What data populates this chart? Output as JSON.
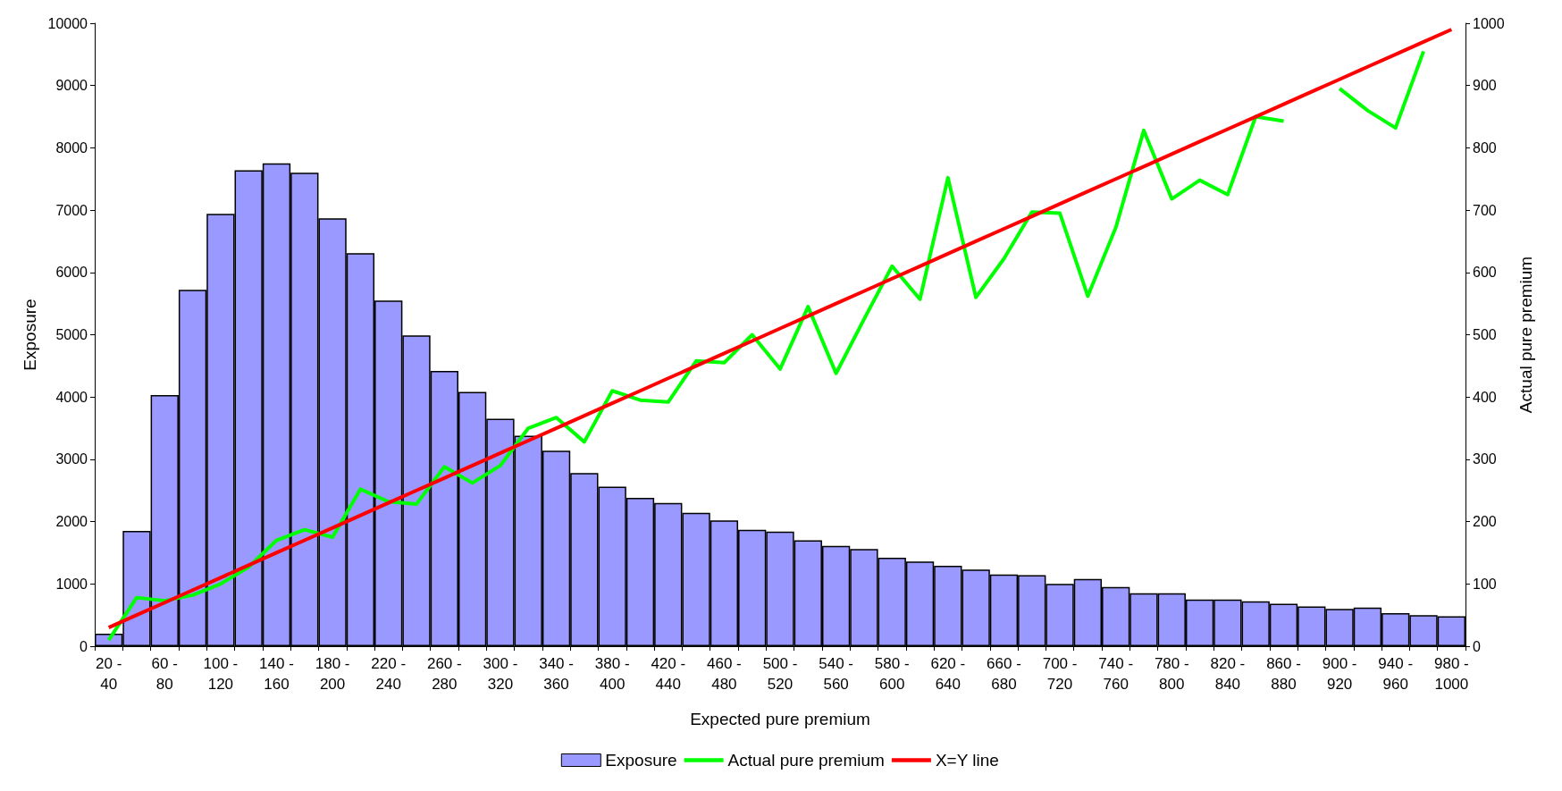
{
  "chart_data": {
    "type": "bar",
    "xlabel": "Expected pure premium",
    "ylabel": "Exposure",
    "y2label": "Actual pure premium",
    "categories": [
      "20 - 40",
      null,
      "60 - 80",
      null,
      "100 - 120",
      null,
      "140 - 160",
      null,
      "180 - 200",
      null,
      "220 - 240",
      null,
      "260 - 280",
      null,
      "300 - 320",
      null,
      "340 - 360",
      null,
      "380 - 400",
      null,
      "420 - 440",
      null,
      "460 - 480",
      null,
      "500 - 520",
      null,
      "540 - 560",
      null,
      "580 - 600",
      null,
      "620 - 640",
      null,
      "660 - 680",
      null,
      "700 - 720",
      null,
      "740 - 760",
      null,
      "780 - 800",
      null,
      "820 - 840",
      null,
      "860 - 880",
      null,
      "900 - 920",
      null,
      "940 - 960",
      null,
      "980 - 1000"
    ],
    "series": [
      {
        "name": "Exposure",
        "color": "#9999ff",
        "values": [
          200,
          1850,
          4030,
          5720,
          6940,
          7640,
          7750,
          7600,
          6870,
          6310,
          5550,
          4990,
          4420,
          4080,
          3650,
          3380,
          3140,
          2780,
          2560,
          2380,
          2300,
          2140,
          2020,
          1870,
          1840,
          1700,
          1610,
          1560,
          1420,
          1360,
          1290,
          1230,
          1150,
          1140,
          1000,
          1080,
          950,
          850,
          850,
          750,
          750,
          720,
          680,
          640,
          600,
          620,
          530,
          500,
          480
        ]
      },
      {
        "name": "Actual pure premium",
        "type": "line",
        "axis": "y2",
        "color": "#00ff00",
        "values": [
          10,
          78,
          73,
          82,
          100,
          127,
          170,
          187,
          175,
          252,
          232,
          228,
          288,
          262,
          290,
          350,
          367,
          328,
          410,
          395,
          392,
          458,
          455,
          500,
          445,
          545,
          438,
          525,
          610,
          557,
          752,
          560,
          622,
          697,
          695,
          562,
          672,
          828,
          718,
          748,
          725,
          850,
          843,
          null,
          895,
          860,
          832,
          955,
          null
        ]
      },
      {
        "name": "X=Y line",
        "type": "line",
        "axis": "y2",
        "color": "#ff0000",
        "values": [
          30,
          50,
          70,
          90,
          110,
          130,
          150,
          170,
          190,
          210,
          230,
          250,
          270,
          290,
          310,
          330,
          350,
          370,
          390,
          410,
          430,
          450,
          470,
          490,
          510,
          530,
          550,
          570,
          590,
          610,
          630,
          650,
          670,
          690,
          710,
          730,
          750,
          770,
          790,
          810,
          830,
          850,
          870,
          890,
          910,
          930,
          950,
          970,
          990
        ]
      }
    ],
    "ylim": [
      0,
      10000
    ],
    "yticks": [
      0,
      1000,
      2000,
      3000,
      4000,
      5000,
      6000,
      7000,
      8000,
      9000,
      10000
    ],
    "y2lim": [
      0,
      1000
    ],
    "y2ticks": [
      0,
      100,
      200,
      300,
      400,
      500,
      600,
      700,
      800,
      900,
      1000
    ],
    "grid": false,
    "legend": "bottom",
    "marker": "none",
    "line_style": "solid"
  }
}
